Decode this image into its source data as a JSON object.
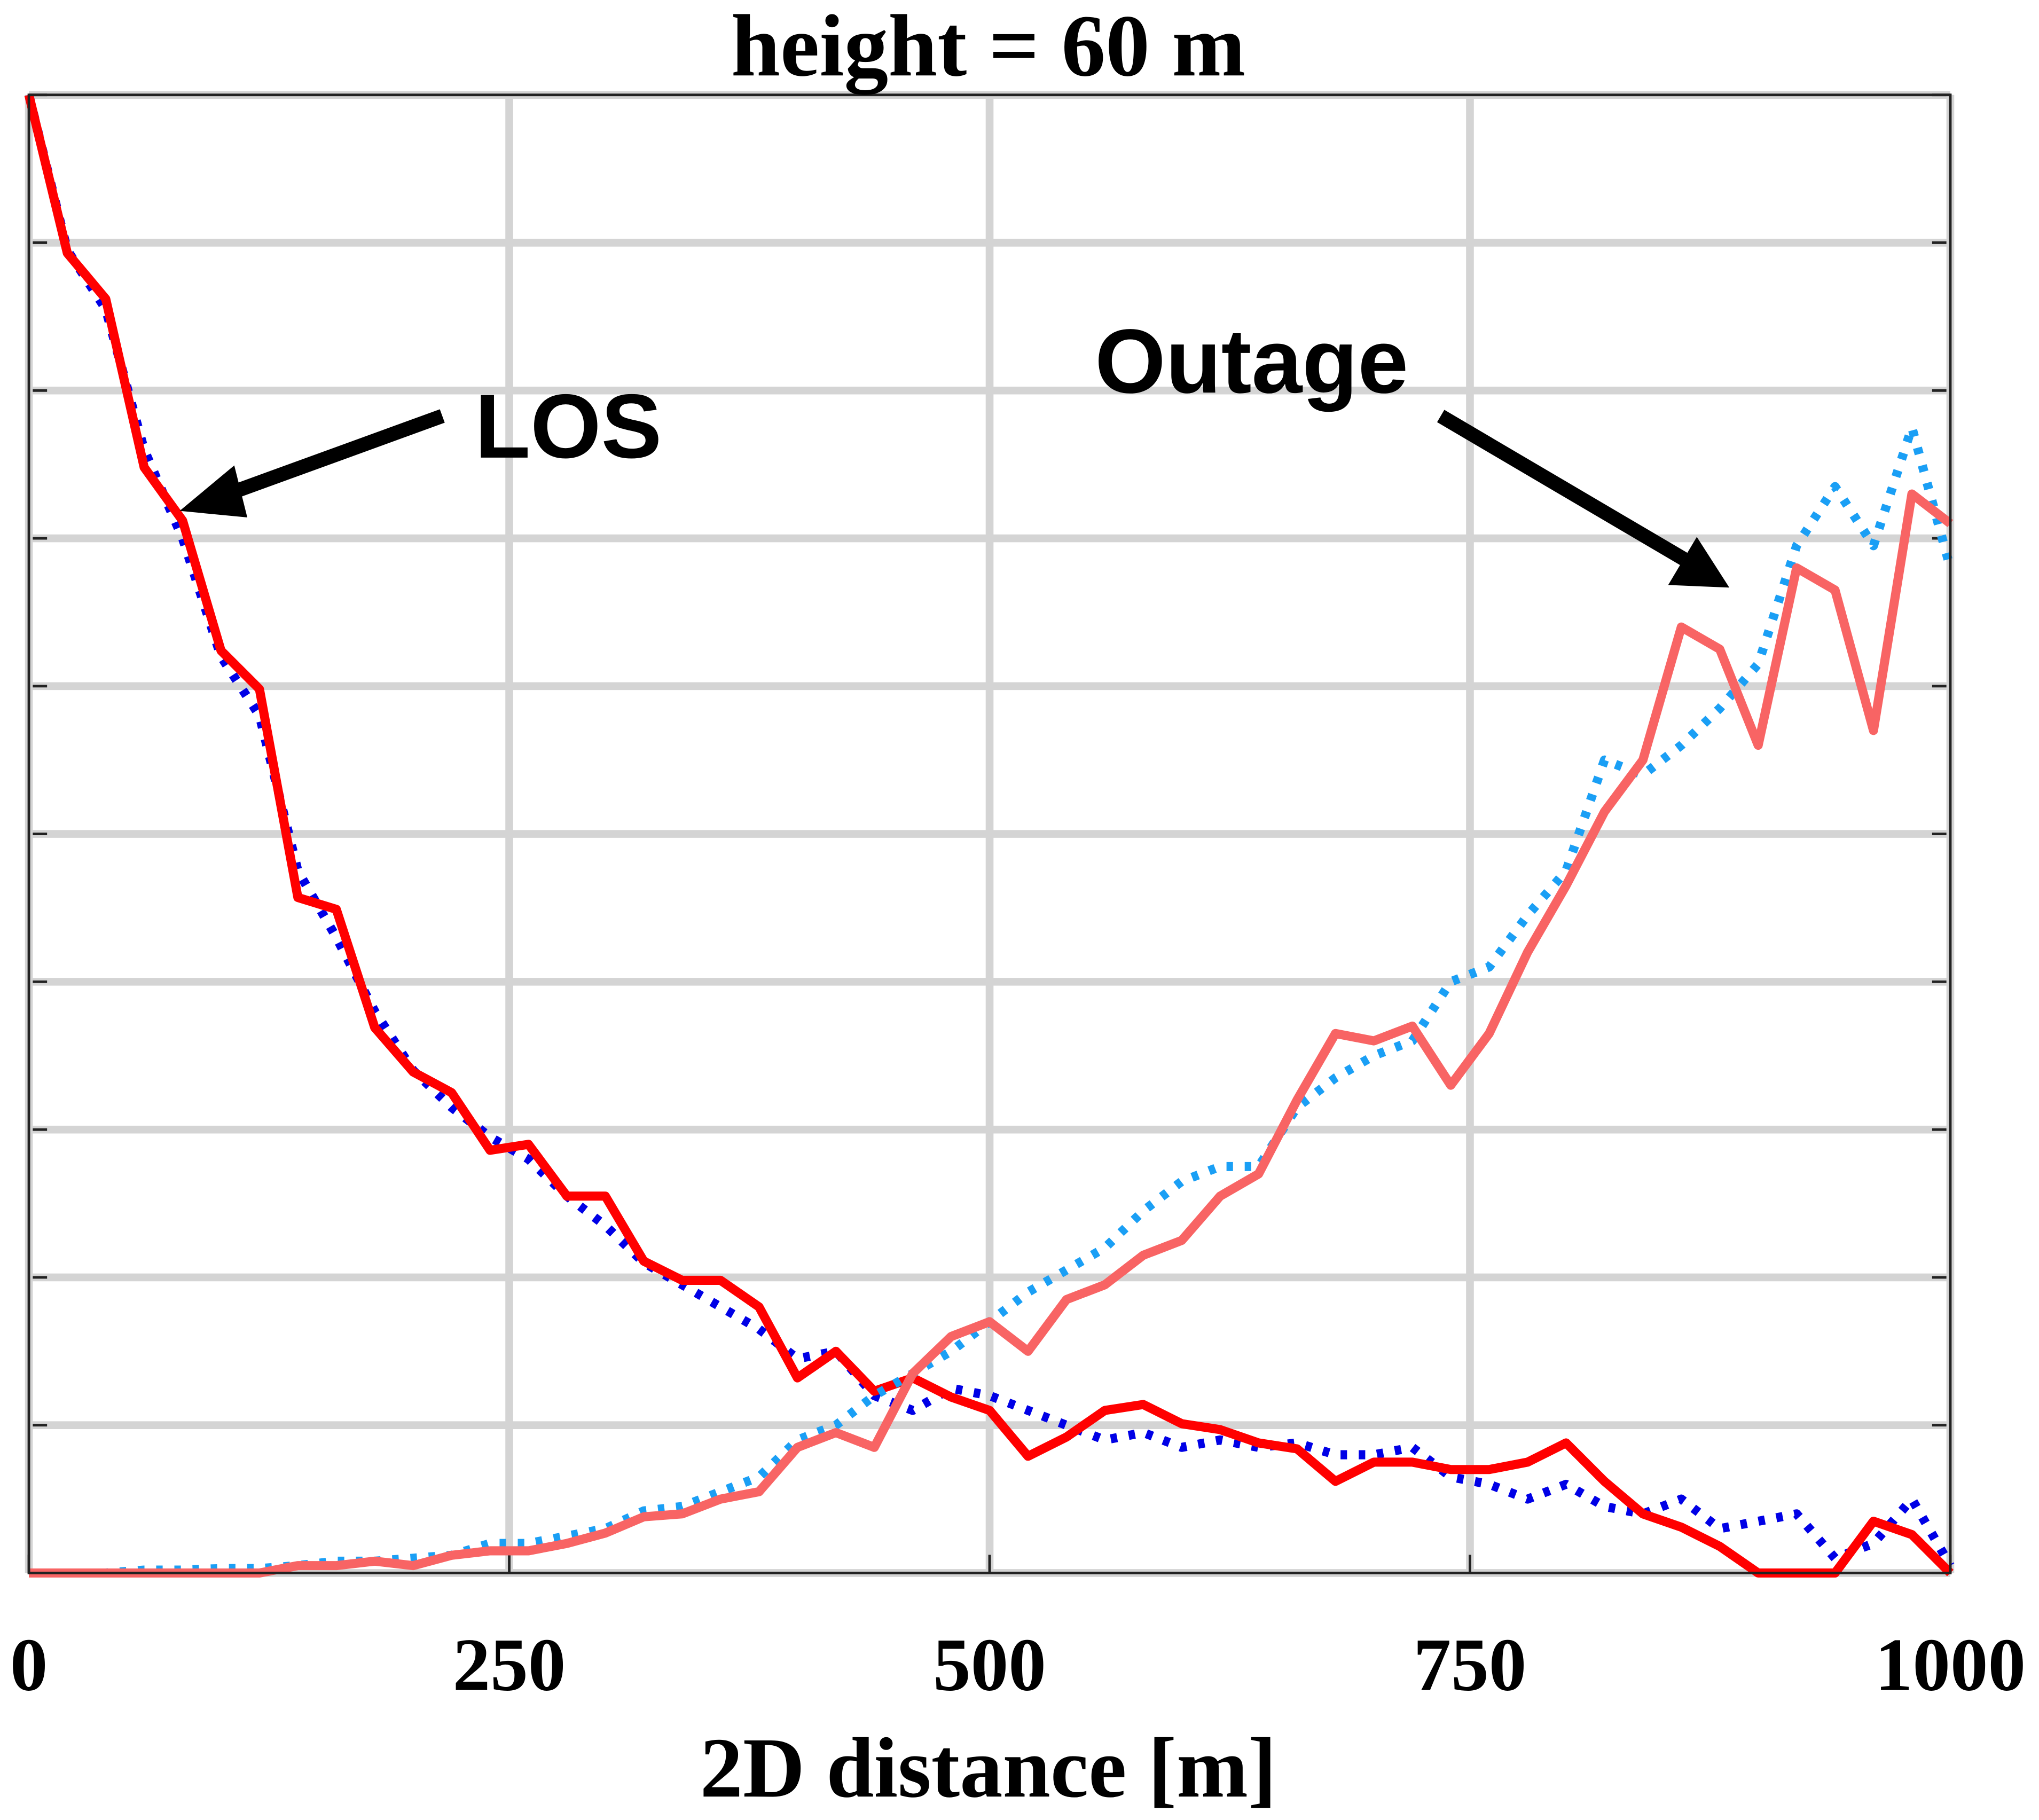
{
  "chart_data": {
    "type": "line",
    "title": "height = 60 m",
    "xlabel": "2D distance [m]",
    "x": [
      0,
      20,
      40,
      60,
      80,
      100,
      120,
      140,
      160,
      180,
      200,
      220,
      240,
      260,
      280,
      300,
      320,
      340,
      360,
      380,
      400,
      420,
      440,
      460,
      480,
      500,
      520,
      540,
      560,
      580,
      600,
      620,
      640,
      660,
      680,
      700,
      720,
      740,
      760,
      780,
      800,
      820,
      840,
      860,
      880,
      900,
      920,
      940,
      960,
      980,
      1000
    ],
    "series": [
      {
        "color": "#0000e6",
        "style": "dotted",
        "values": [
          10.0,
          8.95,
          8.55,
          7.6,
          7.0,
          6.2,
          5.8,
          4.75,
          4.3,
          3.8,
          3.4,
          3.15,
          2.95,
          2.8,
          2.55,
          2.35,
          2.1,
          1.95,
          1.8,
          1.65,
          1.45,
          1.5,
          1.2,
          1.1,
          1.25,
          1.2,
          1.1,
          1.0,
          0.9,
          0.95,
          0.85,
          0.9,
          0.85,
          0.88,
          0.8,
          0.8,
          0.85,
          0.65,
          0.6,
          0.5,
          0.6,
          0.45,
          0.4,
          0.5,
          0.3,
          0.35,
          0.4,
          0.1,
          0.2,
          0.5,
          0.05
        ]
      },
      {
        "color": "#ff0000",
        "style": "solid",
        "values": [
          10.0,
          8.93,
          8.62,
          7.48,
          7.12,
          6.24,
          5.98,
          4.57,
          4.49,
          3.69,
          3.39,
          3.25,
          2.86,
          2.9,
          2.55,
          2.55,
          2.11,
          1.98,
          1.98,
          1.8,
          1.32,
          1.5,
          1.23,
          1.32,
          1.19,
          1.1,
          0.79,
          0.92,
          1.1,
          1.14,
          1.01,
          0.97,
          0.88,
          0.84,
          0.62,
          0.75,
          0.75,
          0.7,
          0.7,
          0.75,
          0.88,
          0.62,
          0.4,
          0.31,
          0.18,
          0,
          0,
          0,
          0.35,
          0.26,
          0
        ]
      },
      {
        "color": "#1a9ff5",
        "style": "dotted",
        "values": [
          0,
          0,
          0,
          0.02,
          0.02,
          0.03,
          0.03,
          0.05,
          0.08,
          0.08,
          0.1,
          0.12,
          0.2,
          0.2,
          0.25,
          0.3,
          0.42,
          0.45,
          0.55,
          0.65,
          0.9,
          1.0,
          1.2,
          1.35,
          1.5,
          1.7,
          1.9,
          2.05,
          2.2,
          2.45,
          2.65,
          2.75,
          2.75,
          3.15,
          3.35,
          3.5,
          3.6,
          4.0,
          4.1,
          4.45,
          4.75,
          5.5,
          5.4,
          5.6,
          5.85,
          6.15,
          6.95,
          7.35,
          6.95,
          7.75,
          6.8
        ]
      },
      {
        "color": "#f86464",
        "style": "solid",
        "values": [
          0,
          0,
          0,
          0,
          0,
          0,
          0,
          0.05,
          0.05,
          0.08,
          0.05,
          0.12,
          0.15,
          0.15,
          0.2,
          0.27,
          0.38,
          0.4,
          0.5,
          0.55,
          0.85,
          0.95,
          0.85,
          1.35,
          1.6,
          1.7,
          1.5,
          1.85,
          1.95,
          2.15,
          2.25,
          2.55,
          2.7,
          3.2,
          3.65,
          3.6,
          3.7,
          3.3,
          3.65,
          4.2,
          4.65,
          5.15,
          5.5,
          6.4,
          6.25,
          5.6,
          6.8,
          6.65,
          5.7,
          7.3,
          7.1
        ]
      }
    ],
    "xlim": [
      0,
      1000
    ],
    "xticks": [
      0,
      250,
      500,
      750,
      1000
    ],
    "ylim": [
      0,
      10
    ],
    "yticks": [
      0,
      1,
      2,
      3,
      4,
      5,
      6,
      7,
      8,
      9,
      10
    ],
    "grid": true,
    "annotations": [
      {
        "text": "LOS"
      },
      {
        "text": "Outage"
      }
    ]
  }
}
